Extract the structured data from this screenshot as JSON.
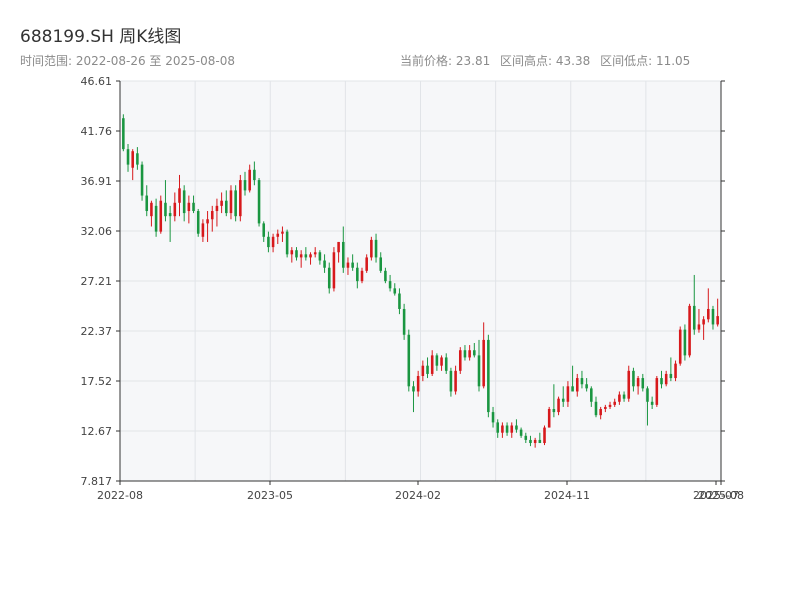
{
  "header": {
    "title": "688199.SH 周K线图",
    "range_label": "时间范围: 2022-08-26 至 2025-08-08",
    "current_price_label": "当前价格: 23.81",
    "high_label": "区间高点: 43.38",
    "low_label": "区间低点: 11.05"
  },
  "chart_data": {
    "type": "candlestick",
    "title": "688199.SH 周K线图",
    "xlabel": "",
    "ylabel": "",
    "ylim": [
      7.817,
      46.61
    ],
    "y_ticks": [
      "46.61",
      "41.76",
      "36.91",
      "32.06",
      "27.21",
      "22.37",
      "17.52",
      "12.67",
      "7.817"
    ],
    "x_ticks": [
      "2022-08",
      "2023-05",
      "2024-02",
      "2024-11",
      "2025-07",
      "2025-08"
    ],
    "up_color": "#d7191c",
    "down_color": "#1a9641",
    "candles": [
      [
        43.0,
        43.38,
        39.8,
        40.0
      ],
      [
        40.0,
        40.5,
        37.8,
        38.5
      ],
      [
        38.2,
        40.0,
        37.0,
        39.8
      ],
      [
        39.6,
        40.2,
        38.0,
        38.5
      ],
      [
        38.5,
        38.8,
        35.0,
        35.5
      ],
      [
        35.5,
        36.5,
        33.5,
        34.0
      ],
      [
        33.5,
        35.0,
        32.5,
        34.8
      ],
      [
        34.5,
        35.2,
        31.5,
        32.0
      ],
      [
        32.0,
        35.5,
        31.8,
        35.0
      ],
      [
        34.8,
        37.0,
        33.0,
        33.5
      ],
      [
        33.8,
        34.5,
        31.0,
        33.5
      ],
      [
        33.5,
        35.8,
        33.0,
        34.8
      ],
      [
        34.8,
        37.5,
        33.5,
        36.2
      ],
      [
        36.0,
        36.5,
        33.0,
        33.8
      ],
      [
        34.0,
        35.5,
        32.8,
        34.8
      ],
      [
        34.8,
        35.5,
        33.8,
        34.0
      ],
      [
        34.0,
        34.2,
        31.5,
        31.8
      ],
      [
        31.5,
        33.2,
        31.0,
        32.8
      ],
      [
        32.8,
        34.0,
        31.0,
        33.2
      ],
      [
        33.2,
        34.5,
        32.0,
        34.0
      ],
      [
        34.0,
        35.2,
        32.5,
        34.5
      ],
      [
        34.5,
        35.8,
        33.8,
        35.0
      ],
      [
        35.0,
        36.0,
        33.5,
        33.8
      ],
      [
        33.8,
        36.5,
        33.2,
        36.0
      ],
      [
        36.0,
        36.5,
        33.0,
        33.5
      ],
      [
        33.5,
        37.5,
        33.0,
        37.0
      ],
      [
        37.0,
        37.8,
        35.5,
        36.0
      ],
      [
        36.0,
        38.5,
        35.8,
        38.0
      ],
      [
        38.0,
        38.8,
        36.5,
        37.0
      ],
      [
        37.0,
        37.2,
        32.5,
        32.8
      ],
      [
        32.8,
        33.0,
        31.0,
        31.5
      ],
      [
        31.5,
        32.0,
        30.0,
        30.5
      ],
      [
        30.5,
        31.8,
        30.0,
        31.5
      ],
      [
        31.5,
        32.2,
        30.8,
        31.8
      ],
      [
        31.8,
        32.5,
        31.0,
        32.0
      ],
      [
        32.0,
        32.2,
        29.5,
        29.8
      ],
      [
        29.8,
        30.5,
        29.0,
        30.2
      ],
      [
        30.2,
        30.5,
        29.2,
        29.5
      ],
      [
        29.5,
        30.2,
        28.5,
        29.8
      ],
      [
        29.8,
        30.5,
        29.2,
        29.5
      ],
      [
        29.5,
        30.0,
        28.8,
        29.8
      ],
      [
        29.8,
        30.5,
        29.5,
        30.0
      ],
      [
        30.0,
        30.2,
        28.8,
        29.2
      ],
      [
        29.2,
        29.8,
        28.0,
        28.5
      ],
      [
        28.5,
        29.0,
        26.0,
        26.5
      ],
      [
        26.5,
        30.5,
        26.2,
        30.0
      ],
      [
        30.0,
        31.0,
        29.0,
        31.0
      ],
      [
        31.0,
        32.5,
        28.0,
        28.5
      ],
      [
        28.5,
        29.5,
        27.8,
        29.0
      ],
      [
        29.0,
        29.8,
        28.2,
        28.5
      ],
      [
        28.5,
        29.0,
        26.5,
        27.2
      ],
      [
        27.2,
        28.5,
        27.0,
        28.2
      ],
      [
        28.2,
        29.8,
        28.0,
        29.5
      ],
      [
        29.5,
        31.5,
        29.2,
        31.2
      ],
      [
        31.2,
        31.8,
        29.0,
        29.5
      ],
      [
        29.5,
        30.0,
        28.0,
        28.2
      ],
      [
        28.2,
        28.5,
        27.0,
        27.2
      ],
      [
        27.2,
        27.8,
        26.2,
        26.5
      ],
      [
        26.5,
        27.0,
        25.8,
        26.0
      ],
      [
        26.0,
        26.5,
        24.0,
        24.5
      ],
      [
        24.5,
        25.0,
        21.5,
        22.0
      ],
      [
        22.0,
        22.5,
        16.5,
        17.0
      ],
      [
        17.0,
        17.5,
        14.5,
        16.5
      ],
      [
        16.5,
        18.5,
        16.0,
        18.0
      ],
      [
        18.0,
        19.5,
        17.5,
        19.0
      ],
      [
        19.0,
        19.8,
        17.8,
        18.2
      ],
      [
        18.2,
        20.5,
        18.0,
        20.0
      ],
      [
        20.0,
        20.2,
        18.5,
        19.0
      ],
      [
        19.0,
        20.0,
        18.5,
        19.8
      ],
      [
        19.8,
        20.2,
        18.2,
        18.5
      ],
      [
        18.5,
        18.8,
        16.0,
        16.5
      ],
      [
        16.5,
        19.0,
        16.2,
        18.5
      ],
      [
        18.5,
        20.8,
        18.2,
        20.5
      ],
      [
        20.5,
        21.0,
        19.5,
        19.8
      ],
      [
        19.8,
        21.0,
        19.5,
        20.5
      ],
      [
        20.5,
        21.2,
        19.8,
        20.0
      ],
      [
        20.0,
        21.5,
        16.5,
        17.0
      ],
      [
        17.0,
        23.2,
        16.8,
        21.5
      ],
      [
        21.5,
        22.0,
        14.0,
        14.5
      ],
      [
        14.5,
        15.0,
        13.0,
        13.5
      ],
      [
        13.5,
        13.8,
        12.0,
        12.5
      ],
      [
        12.5,
        13.5,
        12.0,
        13.2
      ],
      [
        13.2,
        13.5,
        12.2,
        12.5
      ],
      [
        12.5,
        13.5,
        12.0,
        13.2
      ],
      [
        13.2,
        13.8,
        12.5,
        12.8
      ],
      [
        12.8,
        13.0,
        12.0,
        12.2
      ],
      [
        12.2,
        12.5,
        11.5,
        11.8
      ],
      [
        11.8,
        12.2,
        11.2,
        11.5
      ],
      [
        11.5,
        12.0,
        11.05,
        11.8
      ],
      [
        11.8,
        12.5,
        11.5,
        11.5
      ],
      [
        11.5,
        13.2,
        11.3,
        13.0
      ],
      [
        13.0,
        15.0,
        13.0,
        14.8
      ],
      [
        14.8,
        17.2,
        14.0,
        14.5
      ],
      [
        14.5,
        16.0,
        14.2,
        15.8
      ],
      [
        15.8,
        17.0,
        15.0,
        15.5
      ],
      [
        15.5,
        17.5,
        15.0,
        17.0
      ],
      [
        17.0,
        19.0,
        16.5,
        16.5
      ],
      [
        16.5,
        18.2,
        16.0,
        17.8
      ],
      [
        17.8,
        18.5,
        16.8,
        17.2
      ],
      [
        17.2,
        17.8,
        16.5,
        16.8
      ],
      [
        16.8,
        17.0,
        15.0,
        15.5
      ],
      [
        15.5,
        16.0,
        14.0,
        14.2
      ],
      [
        14.2,
        15.0,
        13.8,
        14.8
      ],
      [
        14.8,
        15.2,
        14.5,
        15.0
      ],
      [
        15.0,
        15.5,
        14.8,
        15.2
      ],
      [
        15.2,
        15.8,
        15.0,
        15.5
      ],
      [
        15.5,
        16.5,
        15.2,
        16.2
      ],
      [
        16.2,
        16.5,
        15.5,
        15.8
      ],
      [
        15.8,
        19.0,
        15.5,
        18.5
      ],
      [
        18.5,
        18.8,
        16.5,
        17.0
      ],
      [
        17.0,
        18.0,
        16.2,
        17.8
      ],
      [
        17.8,
        18.2,
        16.5,
        16.8
      ],
      [
        16.8,
        17.0,
        13.2,
        15.5
      ],
      [
        15.5,
        16.0,
        14.8,
        15.2
      ],
      [
        15.2,
        18.0,
        15.0,
        17.8
      ],
      [
        17.8,
        18.5,
        16.8,
        17.2
      ],
      [
        17.2,
        18.5,
        17.0,
        18.2
      ],
      [
        18.2,
        19.8,
        17.5,
        17.8
      ],
      [
        17.8,
        19.5,
        17.5,
        19.2
      ],
      [
        19.2,
        22.8,
        19.0,
        22.5
      ],
      [
        22.5,
        23.0,
        19.5,
        20.0
      ],
      [
        20.0,
        25.0,
        19.8,
        24.8
      ],
      [
        24.8,
        27.8,
        22.0,
        22.5
      ],
      [
        22.5,
        24.5,
        22.2,
        23.0
      ],
      [
        23.0,
        23.8,
        21.5,
        23.5
      ],
      [
        23.5,
        26.5,
        23.2,
        24.5
      ],
      [
        24.5,
        24.8,
        22.5,
        23.0
      ],
      [
        23.0,
        25.5,
        22.8,
        23.81
      ]
    ]
  }
}
